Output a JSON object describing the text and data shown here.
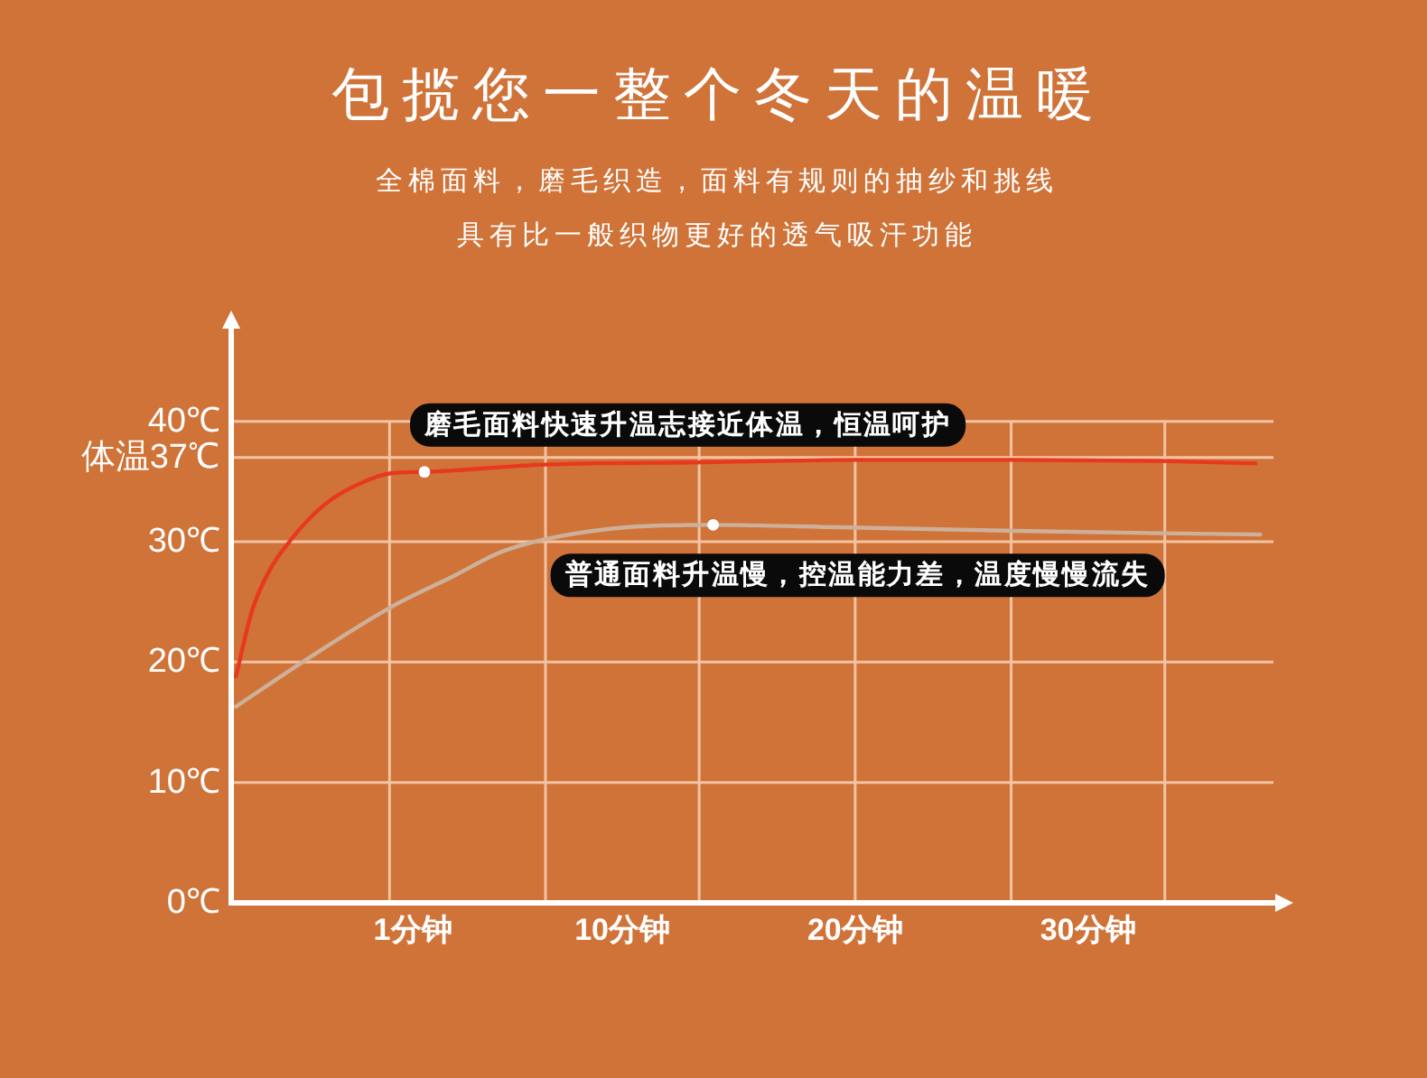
{
  "chart_data": {
    "type": "line",
    "title": "包揽您一整个冬天的温暖",
    "subtitle": "全棉面料，磨毛织造，面料有规则的抽纱和挑线具有比一般织物更好的透气吸汗功能",
    "series": [
      {
        "color": "#e8381f",
        "x": [
          -6.6,
          -5.9,
          -5.1,
          -4.3,
          -3.5,
          -2.5,
          -1.2,
          0.1,
          1.5,
          6.6,
          13.5,
          20.1,
          26.9,
          33.2,
          37.2
        ],
        "values": [
          18.8,
          24.3,
          27.8,
          30.0,
          31.8,
          33.5,
          34.9,
          35.7,
          35.8,
          36.4,
          36.6,
          36.8,
          36.8,
          36.7,
          36.5
        ]
      },
      {
        "color": "#cdb09a",
        "x": [
          -6.6,
          -3.5,
          0.0,
          2.7,
          5.0,
          10.2,
          13.9,
          19.4,
          26.9,
          33.2,
          37.4
        ],
        "values": [
          16.3,
          20.3,
          24.5,
          27.1,
          29.3,
          31.2,
          31.4,
          31.2,
          30.9,
          30.7,
          30.6
        ]
      }
    ],
    "xlim": [
      -6.8,
      38.2
    ],
    "xticks": [
      {
        "value": 0,
        "label": null
      },
      {
        "value": 1,
        "label": "1分钟"
      },
      {
        "value": 6.7,
        "label": null
      },
      {
        "value": 10,
        "label": "10分钟"
      },
      {
        "value": 13.3,
        "label": null
      },
      {
        "value": 20,
        "label": null
      },
      {
        "value": 20,
        "label": "20分钟"
      },
      {
        "value": 26.7,
        "label": null
      },
      {
        "value": 30,
        "label": "30分钟"
      },
      {
        "value": 33.3,
        "label": null
      }
    ],
    "ylim": [
      0,
      48
    ],
    "yticks": [
      {
        "value": 0,
        "label": "0℃"
      },
      {
        "value": 10,
        "label": "10℃"
      },
      {
        "value": 20,
        "label": "20℃"
      },
      {
        "value": 30,
        "label": "30℃"
      },
      {
        "value": 37,
        "label": "体温37℃"
      },
      {
        "value": 40,
        "label": "40℃"
      }
    ],
    "grid": true,
    "annotations": [
      {
        "text": "磨毛面料快速升温志接近体温，恒温呵护",
        "x": 1.5,
        "y": 35.8
      },
      {
        "text": "普通面料升温慢，控温能力差，温度慢慢流失",
        "x": 13.9,
        "y": 31.4
      }
    ]
  }
}
